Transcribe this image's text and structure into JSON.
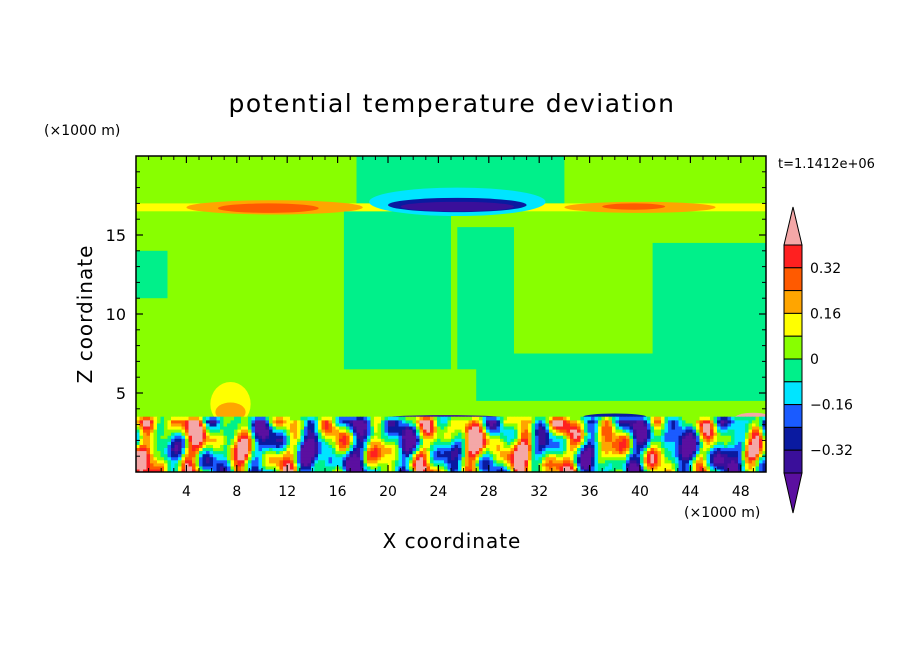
{
  "chart_data": {
    "type": "heatmap",
    "title": "potential temperature deviation",
    "xlabel": "X coordinate",
    "ylabel": "Z coordinate",
    "x_unit": "(×1000 m)",
    "y_unit": "(×1000 m)",
    "time_label": "t=1.1412e+06",
    "xlim": [
      0,
      50
    ],
    "ylim": [
      0,
      20
    ],
    "x_ticks": [
      4,
      8,
      12,
      16,
      20,
      24,
      28,
      32,
      36,
      40,
      44,
      48
    ],
    "y_ticks": [
      5,
      10,
      15
    ],
    "colorbar": {
      "levels": [
        -0.48,
        -0.4,
        -0.32,
        -0.24,
        -0.16,
        -0.08,
        0,
        0.08,
        0.16,
        0.24,
        0.32,
        0.4
      ],
      "colors": [
        "#5b0fa0",
        "#3a0f9a",
        "#0a1aa0",
        "#1a5bff",
        "#00e5ff",
        "#00f08a",
        "#88ff00",
        "#ffff00",
        "#ffa500",
        "#ff5a00",
        "#ff2020",
        "#f4a7a7"
      ],
      "tick_labels": [
        "0.32",
        "0.16",
        "0",
        "−0.16",
        "−0.32"
      ],
      "tick_values": [
        0.32,
        0.16,
        0,
        -0.16,
        -0.32
      ]
    },
    "field": {
      "background": 0.03,
      "regions": [
        {
          "shape": "rect",
          "x0": 0,
          "x1": 50,
          "z0": 0,
          "z1": 20,
          "value": 0.03
        },
        {
          "shape": "rect",
          "x0": 16.5,
          "x1": 25,
          "z0": 6.5,
          "z1": 16.5,
          "value": -0.03
        },
        {
          "shape": "rect",
          "x0": 17.5,
          "x1": 34,
          "z0": 17,
          "z1": 20,
          "value": -0.03
        },
        {
          "shape": "rect",
          "x0": 25.5,
          "x1": 30,
          "z0": 6.5,
          "z1": 15.5,
          "value": -0.03
        },
        {
          "shape": "rect",
          "x0": 41,
          "x1": 50,
          "z0": 7.5,
          "z1": 14.5,
          "value": -0.03
        },
        {
          "shape": "rect",
          "x0": 0,
          "x1": 2.5,
          "z0": 11,
          "z1": 14,
          "value": -0.03
        },
        {
          "shape": "rect",
          "x0": 27,
          "x1": 50,
          "z0": 4.5,
          "z1": 7.5,
          "value": -0.03
        },
        {
          "shape": "rect",
          "x0": 0,
          "x1": 50,
          "z0": 16.5,
          "z1": 17.0,
          "value": 0.13
        },
        {
          "shape": "ellipse",
          "cx": 11,
          "cz": 16.75,
          "rx": 7,
          "rz": 0.45,
          "value": 0.22
        },
        {
          "shape": "ellipse",
          "cx": 10.5,
          "cz": 16.7,
          "rx": 4,
          "rz": 0.3,
          "value": 0.3
        },
        {
          "shape": "ellipse",
          "cx": 40,
          "cz": 16.75,
          "rx": 6,
          "rz": 0.35,
          "value": 0.2
        },
        {
          "shape": "ellipse",
          "cx": 39.5,
          "cz": 16.8,
          "rx": 2.5,
          "rz": 0.2,
          "value": 0.3
        },
        {
          "shape": "ellipse",
          "cx": 25.5,
          "cz": 17.1,
          "rx": 7,
          "rz": 0.9,
          "value": -0.1
        },
        {
          "shape": "ellipse",
          "cx": 25.5,
          "cz": 16.9,
          "rx": 5.5,
          "rz": 0.45,
          "value": -0.26
        },
        {
          "shape": "ellipse",
          "cx": 25.5,
          "cz": 16.8,
          "rx": 4.5,
          "rz": 0.3,
          "value": -0.4
        },
        {
          "shape": "ellipse",
          "cx": 7.5,
          "cz": 4.3,
          "rx": 1.6,
          "rz": 1.4,
          "value": 0.13
        },
        {
          "shape": "ellipse",
          "cx": 7.5,
          "cz": 3.8,
          "rx": 1.2,
          "rz": 0.6,
          "value": 0.2
        },
        {
          "shape": "ellipse",
          "cx": 24.5,
          "cz": 3.4,
          "rx": 5,
          "rz": 0.2,
          "value": -0.38
        },
        {
          "shape": "ellipse",
          "cx": 38,
          "cz": 3.5,
          "rx": 2.5,
          "rz": 0.2,
          "value": -0.3
        },
        {
          "shape": "ellipse",
          "cx": 49,
          "cz": 3.4,
          "rx": 1.5,
          "rz": 0.35,
          "value": 0.45
        }
      ],
      "boundary_layer": {
        "z0": 0,
        "z1": 3.5,
        "pattern": "turbulent"
      }
    }
  }
}
